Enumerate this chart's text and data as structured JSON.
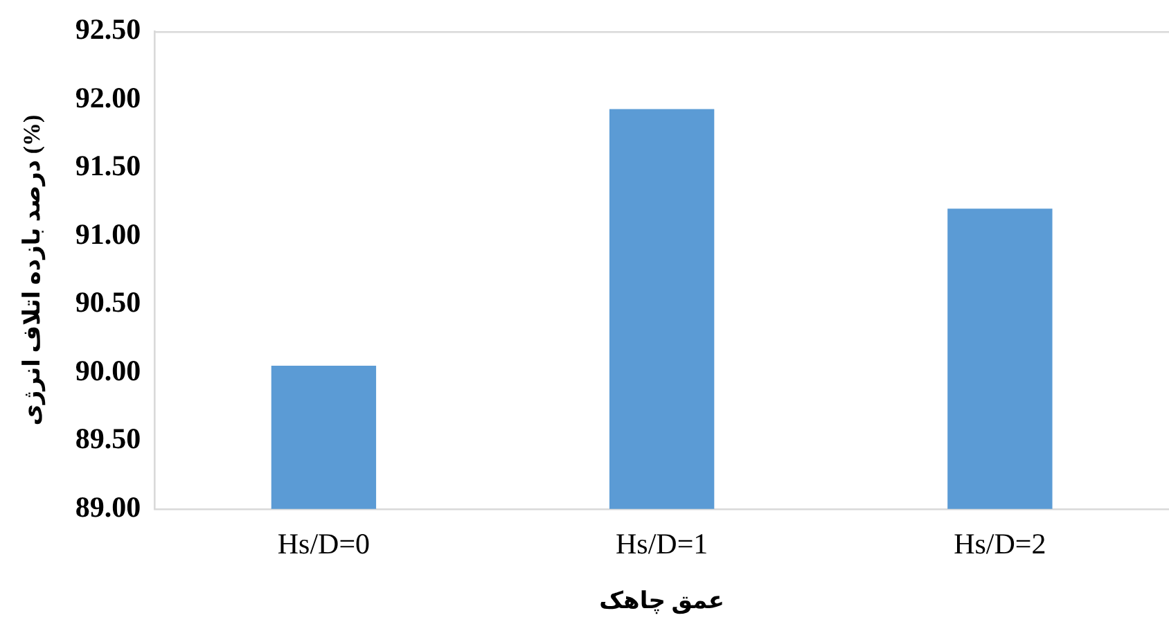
{
  "chart_data": {
    "type": "bar",
    "xlabel": "عمق چاهک",
    "ylabel": "درصد بازده اتلاف انرژی (%)",
    "categories": [
      "Hs/D=0",
      "Hs/D=1",
      "Hs/D=2"
    ],
    "values": [
      90.05,
      91.93,
      91.2
    ],
    "color": "#5b9bd5",
    "ylim": [
      89,
      92.5
    ],
    "yticks": [
      {
        "value": 89,
        "label": "89.00"
      },
      {
        "value": 89.5,
        "label": "89.50"
      },
      {
        "value": 90,
        "label": "90.00"
      },
      {
        "value": 90.5,
        "label": "90.50"
      },
      {
        "value": 91,
        "label": "91.00"
      },
      {
        "value": 91.5,
        "label": "91.50"
      },
      {
        "value": 92,
        "label": "92.00"
      },
      {
        "value": 92.5,
        "label": "92.50"
      }
    ],
    "grid": false
  }
}
